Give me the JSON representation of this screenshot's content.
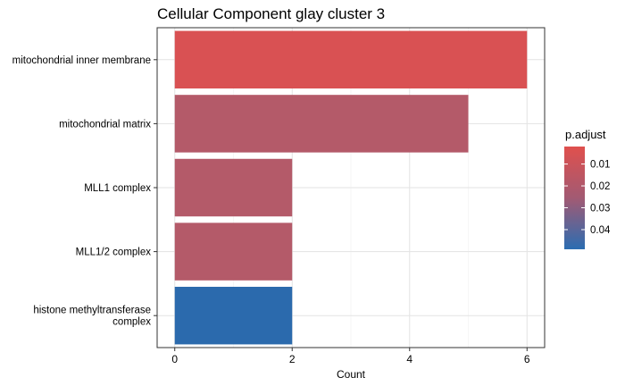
{
  "chart_data": {
    "type": "bar",
    "orientation": "horizontal",
    "title": "Cellular Component glay cluster 3",
    "xlabel": "Count",
    "ylabel": "",
    "xlim": [
      -0.3,
      6.3
    ],
    "xticks": [
      0,
      2,
      4,
      6
    ],
    "grid": true,
    "categories": [
      "mitochondrial inner membrane",
      "mitochondrial matrix",
      "MLL1 complex",
      "MLL1/2 complex",
      "histone methyltransferase complex"
    ],
    "category_label_lines": [
      [
        "mitochondrial inner membrane"
      ],
      [
        "mitochondrial matrix"
      ],
      [
        "MLL1 complex"
      ],
      [
        "MLL1/2 complex"
      ],
      [
        "histone methyltransferase",
        "complex"
      ]
    ],
    "values": [
      6,
      5,
      2,
      2,
      2
    ],
    "p_adjust": [
      0.002,
      0.02,
      0.02,
      0.02,
      0.049
    ],
    "bar_colors": [
      "#d95153",
      "#b45a69",
      "#b45a69",
      "#b45a69",
      "#2b6aad"
    ],
    "legend": {
      "title": "p.adjust",
      "position": "right",
      "ticks": [
        "0.01",
        "0.02",
        "0.03",
        "0.04"
      ],
      "tick_values": [
        0.01,
        0.02,
        0.03,
        0.04
      ],
      "range": [
        0.002,
        0.049
      ],
      "color_low": "#e0504d",
      "color_high": "#2b6db2"
    }
  }
}
